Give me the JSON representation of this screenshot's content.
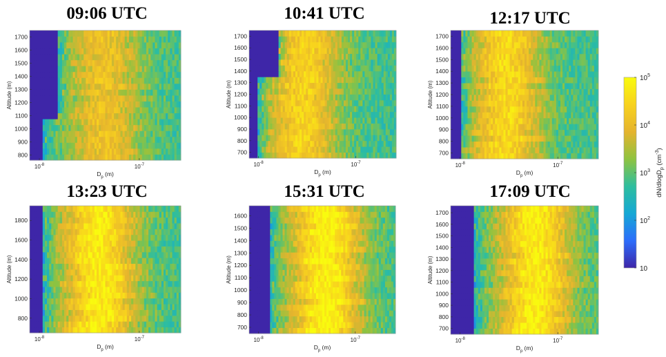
{
  "colorbar": {
    "label": "dN/dlogD",
    "label_subscript": "p",
    "label_unit": "(cm",
    "label_unit_sup": "-3",
    "label_close": ")",
    "scale": "log",
    "range": [
      10,
      100000
    ],
    "ticks": [
      "10",
      "10",
      "10",
      "10",
      "10"
    ],
    "tick_exponents": [
      "",
      "2",
      "3",
      "4",
      "5"
    ],
    "colormap": [
      "#3e26a8",
      "#2c6dfb",
      "#15a8d5",
      "#2ebe9e",
      "#8fc340",
      "#e5b42e",
      "#f8d21e",
      "#f9fb0e"
    ]
  },
  "chart_data": [
    {
      "type": "heatmap",
      "title": "09:06 UTC",
      "xlabel": "D",
      "xlabel_sub": "p",
      "xlabel_unit": " (m)",
      "ylabel": "Altitude (m)",
      "xscale": "log",
      "xlim": [
        8e-09,
        2.6e-07
      ],
      "ylim": [
        760,
        1750
      ],
      "yticks": [
        800,
        900,
        1000,
        1100,
        1200,
        1300,
        1400,
        1500,
        1600,
        1700
      ],
      "xticks": [
        {
          "base": "10",
          "exp": "-8"
        },
        {
          "base": "10",
          "exp": "-7"
        }
      ],
      "mode_diameter": 4.5e-08,
      "peak_log10": 4.1,
      "empty_cutoff_by_altitude": [
        [
          760,
          1070,
          1.1e-08
        ],
        [
          1070,
          1750,
          1.5e-08
        ]
      ]
    },
    {
      "type": "heatmap",
      "title": "10:41 UTC",
      "xlabel": "D",
      "xlabel_sub": "p",
      "xlabel_unit": " (m)",
      "ylabel": "Altitude (m)",
      "xscale": "log",
      "xlim": [
        8e-09,
        2.6e-07
      ],
      "ylim": [
        650,
        1750
      ],
      "yticks": [
        700,
        800,
        900,
        1000,
        1100,
        1200,
        1300,
        1400,
        1500,
        1600,
        1700
      ],
      "xticks": [
        {
          "base": "10",
          "exp": "-8"
        },
        {
          "base": "10",
          "exp": "-7"
        }
      ],
      "mode_diameter": 2.8e-08,
      "peak_log10": 4.4,
      "empty_cutoff_by_altitude": [
        [
          650,
          1330,
          1e-08
        ],
        [
          1330,
          1750,
          1.6e-08
        ]
      ]
    },
    {
      "type": "heatmap",
      "title": "12:17 UTC",
      "xlabel": "D",
      "xlabel_sub": "p",
      "xlabel_unit": " (m)",
      "ylabel": "Altitude (m)",
      "xscale": "log",
      "xlim": [
        8e-09,
        2.6e-07
      ],
      "ylim": [
        650,
        1750
      ],
      "yticks": [
        700,
        800,
        900,
        1000,
        1100,
        1200,
        1300,
        1400,
        1500,
        1600,
        1700
      ],
      "xticks": [
        {
          "base": "10",
          "exp": "-8"
        },
        {
          "base": "10",
          "exp": "-7"
        }
      ],
      "mode_diameter": 3e-08,
      "peak_log10": 4.5,
      "empty_cutoff_by_altitude": [
        [
          650,
          1750,
          1.05e-08
        ]
      ]
    },
    {
      "type": "heatmap",
      "title": "13:23 UTC",
      "xlabel": "D",
      "xlabel_sub": "p",
      "xlabel_unit": " (m)",
      "ylabel": "Altitude (m)",
      "xscale": "log",
      "xlim": [
        8e-09,
        2.6e-07
      ],
      "ylim": [
        650,
        1950
      ],
      "yticks": [
        800,
        1000,
        1200,
        1400,
        1600,
        1800
      ],
      "xticks": [
        {
          "base": "10",
          "exp": "-8"
        },
        {
          "base": "10",
          "exp": "-7"
        }
      ],
      "mode_diameter": 4e-08,
      "peak_log10": 4.8,
      "empty_cutoff_by_altitude": [
        [
          650,
          1950,
          1.1e-08
        ]
      ]
    },
    {
      "type": "heatmap",
      "title": "15:31 UTC",
      "xlabel": "D",
      "xlabel_sub": "p",
      "xlabel_unit": " (m)",
      "ylabel": "Altitude (m)",
      "xscale": "log",
      "xlim": [
        8e-09,
        2.6e-07
      ],
      "ylim": [
        650,
        1680
      ],
      "yticks": [
        700,
        800,
        900,
        1000,
        1100,
        1200,
        1300,
        1400,
        1500,
        1600
      ],
      "xticks": [
        {
          "base": "10",
          "exp": "-8"
        },
        {
          "base": "10",
          "exp": "-7"
        }
      ],
      "mode_diameter": 5e-08,
      "peak_log10": 4.9,
      "empty_cutoff_by_altitude": [
        [
          650,
          1680,
          1.3e-08
        ]
      ]
    },
    {
      "type": "heatmap",
      "title": "17:09 UTC",
      "xlabel": "D",
      "xlabel_sub": "p",
      "xlabel_unit": " (m)",
      "ylabel": "Altitude (m)",
      "xscale": "log",
      "xlim": [
        8e-09,
        2.6e-07
      ],
      "ylim": [
        650,
        1760
      ],
      "yticks": [
        700,
        800,
        900,
        1000,
        1100,
        1200,
        1300,
        1400,
        1500,
        1600,
        1700
      ],
      "xticks": [
        {
          "base": "10",
          "exp": "-8"
        },
        {
          "base": "10",
          "exp": "-7"
        }
      ],
      "mode_diameter": 6e-08,
      "peak_log10": 4.8,
      "empty_cutoff_by_altitude": [
        [
          650,
          1760,
          1.4e-08
        ]
      ]
    }
  ]
}
